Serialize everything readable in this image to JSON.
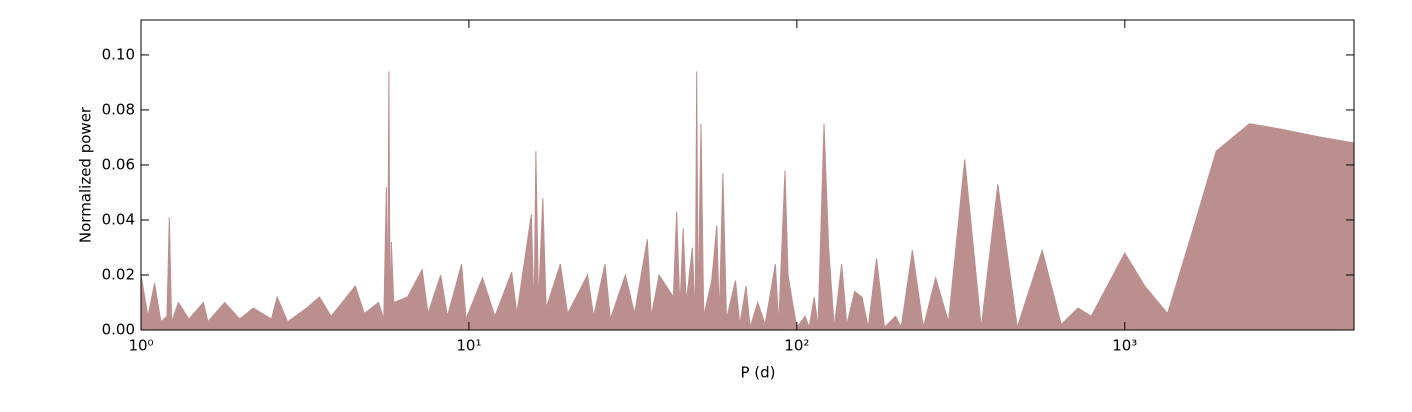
{
  "chart_data": {
    "type": "area",
    "xlabel": "P (d)",
    "ylabel": "Normalized power",
    "xscale": "log",
    "color": "#bc8f8f",
    "xlim": [
      1,
      5000
    ],
    "ylim": [
      0,
      0.1127
    ],
    "xticks": [
      {
        "value": 1,
        "label": "10⁰"
      },
      {
        "value": 10,
        "label": "10¹"
      },
      {
        "value": 100,
        "label": "10²"
      },
      {
        "value": 1000,
        "label": "10³"
      }
    ],
    "yticks": [
      {
        "value": 0,
        "label": "0.00"
      },
      {
        "value": 0.02,
        "label": "0.02"
      },
      {
        "value": 0.04,
        "label": "0.04"
      },
      {
        "value": 0.06,
        "label": "0.06"
      },
      {
        "value": 0.08,
        "label": "0.08"
      },
      {
        "value": 0.1,
        "label": "0.10"
      }
    ],
    "x": [
      1.0,
      1.05,
      1.1,
      1.15,
      1.2,
      1.22,
      1.24,
      1.3,
      1.4,
      1.55,
      1.6,
      1.8,
      2.0,
      2.2,
      2.5,
      2.6,
      2.8,
      3.2,
      3.5,
      3.8,
      4.5,
      4.8,
      5.3,
      5.5,
      5.6,
      5.65,
      5.7,
      5.75,
      5.8,
      5.9,
      6.5,
      7.2,
      7.5,
      8.2,
      8.6,
      9.5,
      9.8,
      11,
      12,
      13.5,
      14,
      15.5,
      15.8,
      16,
      16.3,
      16.8,
      17.2,
      19,
      20,
      23,
      24,
      26,
      27,
      30,
      32,
      35,
      36,
      38,
      42,
      43,
      44,
      45,
      46,
      48,
      49,
      49.5,
      50,
      51,
      52,
      55,
      57,
      58,
      59.5,
      61,
      65,
      67,
      70,
      72,
      76,
      80,
      86,
      88,
      92,
      94,
      97,
      100,
      106,
      109,
      113,
      116,
      121,
      125,
      130,
      137,
      142,
      150,
      158,
      165,
      175,
      185,
      200,
      208,
      225,
      243,
      265,
      290,
      325,
      365,
      410,
      470,
      560,
      640,
      720,
      790,
      1000,
      1150,
      1350,
      1600,
      1900,
      2400,
      3000,
      4000,
      5000
    ],
    "values": [
      0.02,
      0.005,
      0.017,
      0.003,
      0.005,
      0.041,
      0.003,
      0.01,
      0.004,
      0.01,
      0.003,
      0.01,
      0.004,
      0.008,
      0.004,
      0.012,
      0.003,
      0.008,
      0.012,
      0.005,
      0.016,
      0.006,
      0.01,
      0.004,
      0.052,
      0.005,
      0.094,
      0.004,
      0.032,
      0.01,
      0.012,
      0.022,
      0.006,
      0.02,
      0.005,
      0.024,
      0.004,
      0.019,
      0.005,
      0.021,
      0.006,
      0.042,
      0.006,
      0.065,
      0.01,
      0.048,
      0.008,
      0.024,
      0.006,
      0.02,
      0.005,
      0.024,
      0.004,
      0.02,
      0.006,
      0.033,
      0.005,
      0.02,
      0.012,
      0.043,
      0.008,
      0.037,
      0.01,
      0.03,
      0.005,
      0.094,
      0.006,
      0.075,
      0.005,
      0.018,
      0.038,
      0.005,
      0.057,
      0.004,
      0.018,
      0.002,
      0.016,
      0.001,
      0.01,
      0.002,
      0.024,
      0.002,
      0.058,
      0.02,
      0.01,
      0.001,
      0.005,
      0.001,
      0.012,
      0.001,
      0.075,
      0.03,
      0.001,
      0.024,
      0.002,
      0.014,
      0.012,
      0.001,
      0.026,
      0.001,
      0.005,
      0.001,
      0.029,
      0.001,
      0.019,
      0.003,
      0.062,
      0.001,
      0.053,
      0.001,
      0.029,
      0.002,
      0.008,
      0.005,
      0.028,
      0.016,
      0.006,
      0.035,
      0.065,
      0.075,
      0.073,
      0.07,
      0.068
    ]
  }
}
